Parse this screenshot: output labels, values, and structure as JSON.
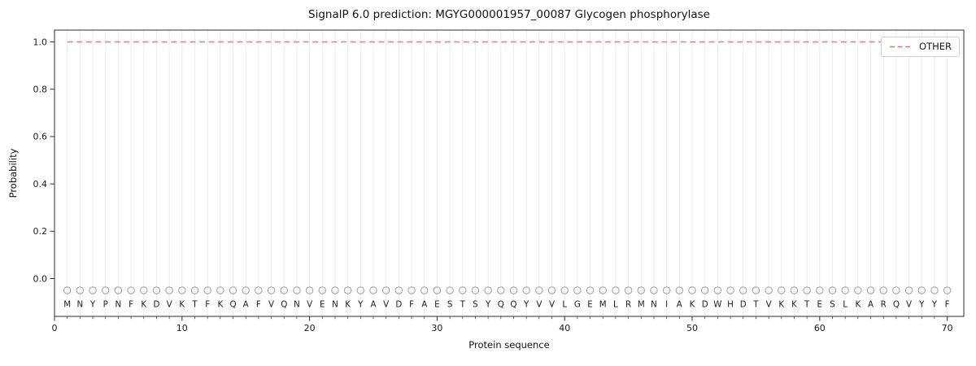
{
  "chart_data": {
    "type": "line",
    "title": "SignalP 6.0 prediction: MGYG000001957_00087 Glycogen phosphorylase",
    "xlabel": "Protein sequence",
    "ylabel": "Probability",
    "xlim": [
      0,
      71.3
    ],
    "ylim": [
      -0.16,
      1.05
    ],
    "x_ticks": [
      0,
      10,
      20,
      30,
      40,
      50,
      60,
      70
    ],
    "y_ticks": [
      0.0,
      0.2,
      0.4,
      0.6,
      0.8,
      1.0
    ],
    "grid": {
      "vertical_line_per_residue": true,
      "color": "#ececec"
    },
    "legend": {
      "position": "upper right",
      "entries": [
        {
          "label": "OTHER",
          "color": "#f08080",
          "linestyle": "dashed"
        }
      ]
    },
    "series": [
      {
        "name": "OTHER",
        "color": "#f08080",
        "linestyle": "dashed",
        "x_start": 1,
        "x_end": 70,
        "constant_y": 1.0,
        "description": "Probability y = 1.0 (flat dashed line) for every residue position 1 through 70"
      }
    ],
    "sequence": "MNYPNFKDVKTFKQAFVQNVENKYAVDFAESTSYQQYVVLGEMLRMNIAKDWHDTVKKTESLKARQVYYF",
    "sequence_markers": {
      "shape": "open-circle",
      "y": -0.05,
      "color": "#a6a6a6"
    }
  },
  "colors": {
    "spine": "#2e2e2e",
    "tick_text": "#1a1a1a",
    "letter_text": "#1f1f1f",
    "background": "#ffffff"
  }
}
